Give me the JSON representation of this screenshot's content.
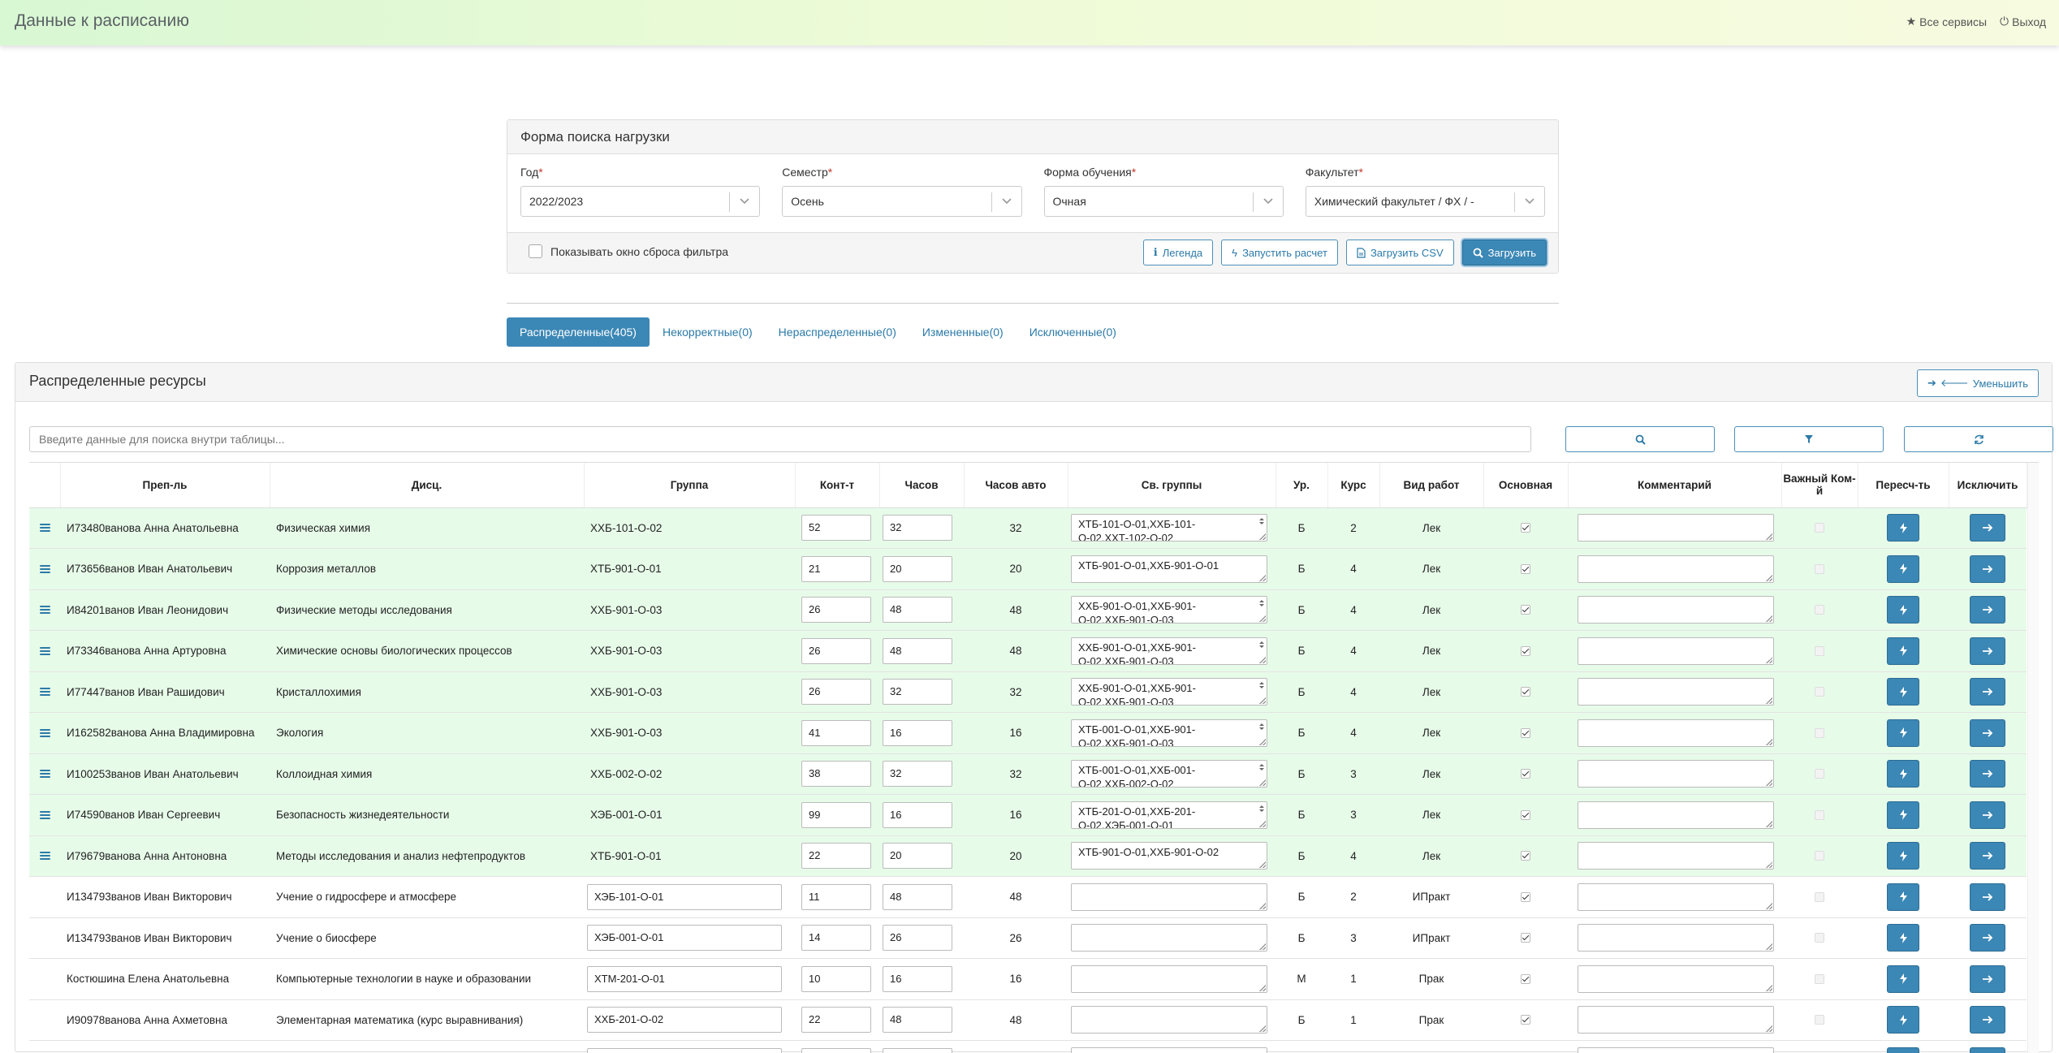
{
  "header": {
    "title": "Данные к расписанию",
    "all_services": "Все сервисы",
    "logout": "Выход"
  },
  "search_form": {
    "title": "Форма поиска нагрузки",
    "year_label": "Год",
    "year_value": "2022/2023",
    "semester_label": "Семестр",
    "semester_value": "Осень",
    "study_form_label": "Форма обучения",
    "study_form_value": "Очная",
    "faculty_label": "Факультет",
    "faculty_value": "Химический факультет / ФХ / -",
    "required_mark": "*",
    "show_reset_label": "Показывать окно сброса фильтра",
    "legend_btn": "Легенда",
    "run_calc_btn": "Запустить расчет",
    "load_csv_btn": "Загрузить CSV",
    "load_btn": "Загрузить"
  },
  "tabs": [
    {
      "label": "Распределенные(405)",
      "active": true
    },
    {
      "label": "Некорректные(0)",
      "active": false
    },
    {
      "label": "Нераспределенные(0)",
      "active": false
    },
    {
      "label": "Измененные(0)",
      "active": false
    },
    {
      "label": "Исключенные(0)",
      "active": false
    }
  ],
  "resources": {
    "title": "Распределенные ресурсы",
    "shrink_btn": "Уменьшить",
    "search_placeholder": "Введите данные для поиска внутри таблицы..."
  },
  "columns": {
    "teacher": "Преп-ль",
    "discipline": "Дисц.",
    "group": "Группа",
    "contingent": "Конт-т",
    "hours": "Часов",
    "hours_auto": "Часов авто",
    "linked_groups": "Св. группы",
    "level": "Ур.",
    "course": "Курс",
    "work_type": "Вид работ",
    "main": "Основная",
    "comment": "Комментарий",
    "important": "Важный Ком-й",
    "recalc": "Пересч-ть",
    "exclude": "Исключить"
  },
  "rows": [
    {
      "teacher": "И73480вановa Анна Анатольевна",
      "discipline": "Физическая химия",
      "group": "ХХБ-101-О-02",
      "group_input": false,
      "contingent": "52",
      "hours": "32",
      "hours_auto": "32",
      "linked": "ХТБ-101-О-01,ХХБ-101-О-02,ХХТ-102-О-02",
      "linked_multi": true,
      "level": "Б",
      "course": "2",
      "work_type": "Лек",
      "main": true,
      "green": true
    },
    {
      "teacher": "И73656ванов Иван Анатольевич",
      "discipline": "Коррозия металлов",
      "group": "ХТБ-901-О-01",
      "group_input": false,
      "contingent": "21",
      "hours": "20",
      "hours_auto": "20",
      "linked": "ХТБ-901-О-01,ХХБ-901-О-01",
      "linked_multi": false,
      "level": "Б",
      "course": "4",
      "work_type": "Лек",
      "main": true,
      "green": true
    },
    {
      "teacher": "И84201ванов Иван Леонидович",
      "discipline": "Физические методы исследования",
      "group": "ХХБ-901-О-03",
      "group_input": false,
      "contingent": "26",
      "hours": "48",
      "hours_auto": "48",
      "linked": "ХХБ-901-О-01,ХХБ-901-О-02,ХХБ-901-О-03",
      "linked_multi": true,
      "level": "Б",
      "course": "4",
      "work_type": "Лек",
      "main": true,
      "green": true
    },
    {
      "teacher": "И73346ванова Анна Артуровна",
      "discipline": "Химические основы биологических процессов",
      "group": "ХХБ-901-О-03",
      "group_input": false,
      "contingent": "26",
      "hours": "48",
      "hours_auto": "48",
      "linked": "ХХБ-901-О-01,ХХБ-901-О-02,ХХБ-901-О-03",
      "linked_multi": true,
      "level": "Б",
      "course": "4",
      "work_type": "Лек",
      "main": true,
      "green": true
    },
    {
      "teacher": "И77447ванов Иван Рашидович",
      "discipline": "Кристаллохимия",
      "group": "ХХБ-901-О-03",
      "group_input": false,
      "contingent": "26",
      "hours": "32",
      "hours_auto": "32",
      "linked": "ХХБ-901-О-01,ХХБ-901-О-02,ХХБ-901-О-03",
      "linked_multi": true,
      "level": "Б",
      "course": "4",
      "work_type": "Лек",
      "main": true,
      "green": true
    },
    {
      "teacher": "И162582ванова Анна Владимировна",
      "discipline": "Экология",
      "group": "ХХБ-901-О-03",
      "group_input": false,
      "contingent": "41",
      "hours": "16",
      "hours_auto": "16",
      "linked": "ХТБ-001-О-01,ХХБ-901-О-02,ХХБ-901-О-03",
      "linked_multi": true,
      "level": "Б",
      "course": "4",
      "work_type": "Лек",
      "main": true,
      "green": true
    },
    {
      "teacher": "И100253ванов Иван Анатольевич",
      "discipline": "Коллоидная химия",
      "group": "ХХБ-002-О-02",
      "group_input": false,
      "contingent": "38",
      "hours": "32",
      "hours_auto": "32",
      "linked": "ХТБ-001-О-01,ХХБ-001-О-02,ХХБ-002-О-02",
      "linked_multi": true,
      "level": "Б",
      "course": "3",
      "work_type": "Лек",
      "main": true,
      "green": true
    },
    {
      "teacher": "И74590ванов Иван Сергеевич",
      "discipline": "Безопасность жизнедеятельности",
      "group": "ХЭБ-001-О-01",
      "group_input": false,
      "contingent": "99",
      "hours": "16",
      "hours_auto": "16",
      "linked": "ХТБ-201-О-01,ХХБ-201-О-02,ХЭБ-001-О-01",
      "linked_multi": true,
      "level": "Б",
      "course": "3",
      "work_type": "Лек",
      "main": true,
      "green": true
    },
    {
      "teacher": "И79679ванова Анна Антоновна",
      "discipline": "Методы исследования и анализ нефтепродуктов",
      "group": "ХТБ-901-О-01",
      "group_input": false,
      "contingent": "22",
      "hours": "20",
      "hours_auto": "20",
      "linked": "ХТБ-901-О-01,ХХБ-901-О-02",
      "linked_multi": false,
      "level": "Б",
      "course": "4",
      "work_type": "Лек",
      "main": true,
      "green": true
    },
    {
      "teacher": "И134793ванов Иван Викторович",
      "discipline": "Учение о гидросфере и атмосфере",
      "group": "ХЭБ-101-О-01",
      "group_input": true,
      "contingent": "11",
      "hours": "48",
      "hours_auto": "48",
      "linked": "",
      "linked_multi": false,
      "level": "Б",
      "course": "2",
      "work_type": "ИПракт",
      "main": true,
      "green": false
    },
    {
      "teacher": "И134793ванов Иван Викторович",
      "discipline": "Учение о биосфере",
      "group": "ХЭБ-001-О-01",
      "group_input": true,
      "contingent": "14",
      "hours": "26",
      "hours_auto": "26",
      "linked": "",
      "linked_multi": false,
      "level": "Б",
      "course": "3",
      "work_type": "ИПракт",
      "main": true,
      "green": false
    },
    {
      "teacher": "Костюшина Елена Анатольевна",
      "discipline": "Компьютерные технологии в науке и образовании",
      "group": "ХТМ-201-О-01",
      "group_input": true,
      "contingent": "10",
      "hours": "16",
      "hours_auto": "16",
      "linked": "",
      "linked_multi": false,
      "level": "М",
      "course": "1",
      "work_type": "Прак",
      "main": true,
      "green": false
    },
    {
      "teacher": "И90978ванова Анна Ахметовна",
      "discipline": "Элементарная математика (курс выравнивания)",
      "group": "ХХБ-201-О-02",
      "group_input": true,
      "contingent": "22",
      "hours": "48",
      "hours_auto": "48",
      "linked": "",
      "linked_multi": false,
      "level": "Б",
      "course": "1",
      "work_type": "Прак",
      "main": true,
      "green": false
    },
    {
      "teacher": "",
      "discipline": "",
      "group": "",
      "group_input": true,
      "contingent": "",
      "hours": "",
      "hours_auto": "",
      "linked": "",
      "linked_multi": false,
      "level": "",
      "course": "",
      "work_type": "",
      "main": false,
      "green": false
    }
  ]
}
